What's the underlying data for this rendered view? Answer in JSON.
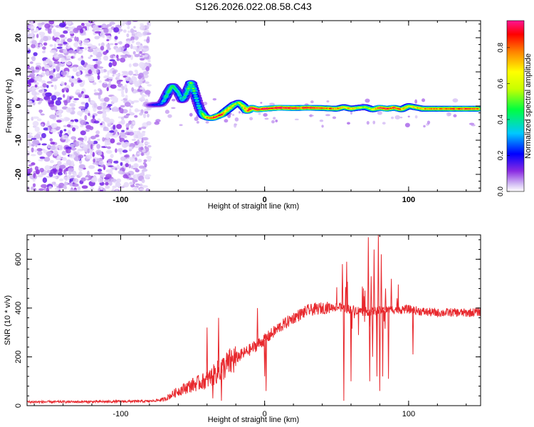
{
  "chart_data": [
    {
      "type": "heatmap",
      "title": "S126.2026.022.08.58.C43",
      "xlabel": "Height of straight line (km)",
      "ylabel": "Frequency (Hz)",
      "xlim": [
        -165,
        150
      ],
      "ylim": [
        -25,
        25
      ],
      "xticks": [
        -100,
        0,
        100
      ],
      "yticks": [
        -20,
        -10,
        0,
        10,
        20
      ],
      "colorbar": {
        "label": "Normalized spectral amplitude",
        "range": [
          0,
          0.95
        ],
        "ticks": [
          0,
          0.2,
          0.4,
          0.6,
          0.8
        ],
        "colors": [
          "#ffffff",
          "#d6c2f5",
          "#8a2be2",
          "#0000ff",
          "#00c8ff",
          "#00ff40",
          "#c8ff00",
          "#ffff00",
          "#ff8000",
          "#ff0000",
          "#ff1493"
        ]
      },
      "noise_region_km": [
        -165,
        -80
      ],
      "track": {
        "height_km": [
          -80,
          -76,
          -72,
          -70,
          -67,
          -64,
          -60,
          -57,
          -54,
          -51,
          -48,
          -45,
          -42,
          -39,
          -36,
          -33,
          -30,
          -27,
          -24,
          -21,
          -18,
          -15,
          -12,
          -9,
          -5,
          0,
          10,
          20,
          30,
          40,
          50,
          55,
          60,
          65,
          70,
          75,
          80,
          85,
          90,
          95,
          100,
          110,
          120,
          130,
          140,
          148
        ],
        "freq_hz": [
          0.3,
          0.4,
          0.5,
          1.5,
          4,
          6,
          4,
          1.5,
          4,
          7,
          3,
          -1,
          -3,
          -3.5,
          -3.5,
          -3,
          -2.5,
          -1.5,
          -0.5,
          0.5,
          1,
          0,
          -1.5,
          -0.5,
          -1,
          -0.8,
          -0.5,
          -0.6,
          -0.5,
          -0.6,
          -0.8,
          -0.3,
          -0.8,
          -0.5,
          -0.3,
          -1,
          -0.5,
          -0.8,
          -0.5,
          -1,
          0,
          -0.8,
          -0.8,
          -0.8,
          -0.8,
          -0.8
        ],
        "amplitude": [
          0.15,
          0.2,
          0.25,
          0.35,
          0.4,
          0.45,
          0.4,
          0.35,
          0.45,
          0.5,
          0.4,
          0.35,
          0.55,
          0.75,
          0.8,
          0.85,
          0.8,
          0.7,
          0.6,
          0.55,
          0.5,
          0.6,
          0.75,
          0.85,
          0.9,
          0.92,
          0.9,
          0.88,
          0.85,
          0.8,
          0.75,
          0.7,
          0.65,
          0.6,
          0.5,
          0.6,
          0.85,
          0.8,
          0.85,
          0.7,
          0.6,
          0.7,
          0.75,
          0.78,
          0.8,
          0.8
        ]
      }
    },
    {
      "type": "line",
      "xlabel": "Height of straight line (km)",
      "ylabel": "SNR (10 * v/v)",
      "xlim": [
        -165,
        150
      ],
      "ylim": [
        0,
        700
      ],
      "xticks": [
        -100,
        0,
        100
      ],
      "yticks": [
        0,
        200,
        400,
        600
      ],
      "series": [
        {
          "name": "SNR",
          "color": "#e8282d",
          "baseline": {
            "x": [
              -165,
              -120,
              -80,
              -70,
              -60,
              -50,
              -40,
              -30,
              -20,
              -10,
              0,
              10,
              20,
              30,
              40,
              50,
              60,
              70,
              80,
              90,
              100,
              110,
              120,
              130,
              140,
              150
            ],
            "y": [
              15,
              16,
              18,
              25,
              60,
              85,
              105,
              150,
              195,
              230,
              270,
              320,
              360,
              390,
              400,
              405,
              395,
              385,
              390,
              395,
              395,
              385,
              380,
              382,
              380,
              385
            ]
          },
          "spikes": {
            "x": [
              -40,
              -36,
              -32,
              -30,
              -5,
              0,
              1,
              54,
              55,
              57,
              60,
              72,
              73,
              74,
              75,
              76,
              78,
              79,
              80,
              81,
              82,
              84,
              86,
              88,
              92,
              103
            ],
            "y": [
              320,
              30,
              360,
              20,
              400,
              120,
              60,
              580,
              20,
              590,
              100,
              690,
              100,
              530,
              200,
              640,
              120,
              700,
              60,
              620,
              120,
              480,
              110,
              520,
              440,
              210
            ]
          }
        }
      ]
    }
  ]
}
